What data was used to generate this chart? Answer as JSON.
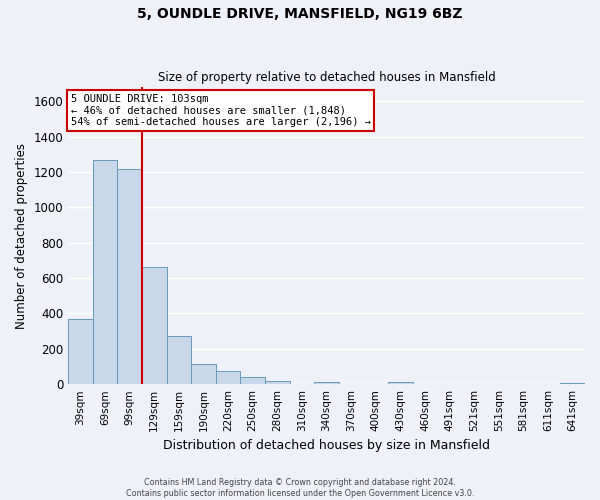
{
  "title_line1": "5, OUNDLE DRIVE, MANSFIELD, NG19 6BZ",
  "title_line2": "Size of property relative to detached houses in Mansfield",
  "xlabel": "Distribution of detached houses by size in Mansfield",
  "ylabel": "Number of detached properties",
  "bar_labels": [
    "39sqm",
    "69sqm",
    "99sqm",
    "129sqm",
    "159sqm",
    "190sqm",
    "220sqm",
    "250sqm",
    "280sqm",
    "310sqm",
    "340sqm",
    "370sqm",
    "400sqm",
    "430sqm",
    "460sqm",
    "491sqm",
    "521sqm",
    "551sqm",
    "581sqm",
    "611sqm",
    "641sqm"
  ],
  "bar_values": [
    370,
    1270,
    1215,
    665,
    270,
    115,
    75,
    40,
    20,
    0,
    15,
    0,
    0,
    15,
    0,
    0,
    0,
    0,
    0,
    0,
    5
  ],
  "bar_color": "#c8d8ea",
  "bar_edge_color": "#6699bb",
  "bg_color": "#eef2f8",
  "grid_color": "#ffffff",
  "vline_index": 2,
  "vline_color": "#cc0000",
  "annotation_text": "5 OUNDLE DRIVE: 103sqm\n← 46% of detached houses are smaller (1,848)\n54% of semi-detached houses are larger (2,196) →",
  "annotation_box_edgecolor": "#cc0000",
  "ylim": [
    0,
    1680
  ],
  "yticks": [
    0,
    200,
    400,
    600,
    800,
    1000,
    1200,
    1400,
    1600
  ],
  "footer_line1": "Contains HM Land Registry data © Crown copyright and database right 2024.",
  "footer_line2": "Contains public sector information licensed under the Open Government Licence v3.0."
}
